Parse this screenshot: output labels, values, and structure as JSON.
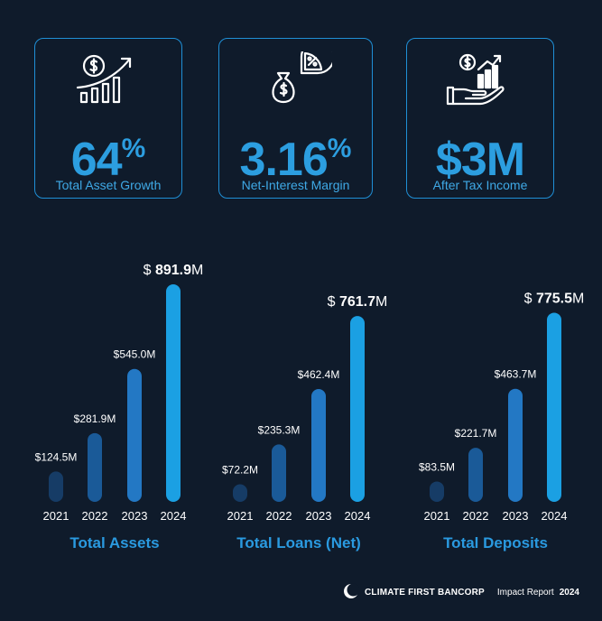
{
  "kpis": [
    {
      "icon": "dollar-growth-icon",
      "value": "64",
      "unit": "%",
      "label": "Total Asset Growth"
    },
    {
      "icon": "money-bag-percent-icon",
      "value": "3.16",
      "unit": "%",
      "label": "Net-Interest Margin"
    },
    {
      "icon": "hand-dollar-growth-icon",
      "value": "$3M",
      "unit": "",
      "label": "After Tax Income"
    }
  ],
  "chart_data": [
    {
      "type": "bar",
      "title": "Total Assets",
      "categories": [
        "2021",
        "2022",
        "2023",
        "2024"
      ],
      "values": [
        124.5,
        281.9,
        545.0,
        891.9
      ],
      "labels": [
        "$124.5M",
        "$281.9M",
        "$545.0M"
      ],
      "highlight_label": {
        "prefix": "$ ",
        "number": "891.9",
        "suffix": "M"
      },
      "bar_colors": [
        "#163c66",
        "#1a5a98",
        "#2378c4",
        "#1ba0e3"
      ]
    },
    {
      "type": "bar",
      "title": "Total Loans (Net)",
      "categories": [
        "2021",
        "2022",
        "2023",
        "2024"
      ],
      "values": [
        72.2,
        235.3,
        462.4,
        761.7
      ],
      "labels": [
        "$72.2M",
        "$235.3M",
        "$462.4M"
      ],
      "highlight_label": {
        "prefix": "$ ",
        "number": "761.7",
        "suffix": "M"
      },
      "bar_colors": [
        "#163c66",
        "#1a5a98",
        "#2378c4",
        "#1ba0e3"
      ]
    },
    {
      "type": "bar",
      "title": "Total Deposits",
      "categories": [
        "2021",
        "2022",
        "2023",
        "2024"
      ],
      "values": [
        83.5,
        221.7,
        463.7,
        775.5
      ],
      "labels": [
        "$83.5M",
        "$221.7M",
        "$463.7M"
      ],
      "highlight_label": {
        "prefix": "$ ",
        "number": "775.5",
        "suffix": "M"
      },
      "bar_colors": [
        "#163c66",
        "#1a5a98",
        "#2378c4",
        "#1ba0e3"
      ]
    }
  ],
  "colors": {
    "accent": "#2c9ee0",
    "title": "#2a9ae0",
    "background": "#0f1b2b"
  },
  "footer": {
    "logo_icon": "crescent-logo-icon",
    "brand": "CLIMATE FIRST BANCORP",
    "report": "Impact Report",
    "year": "2024"
  }
}
